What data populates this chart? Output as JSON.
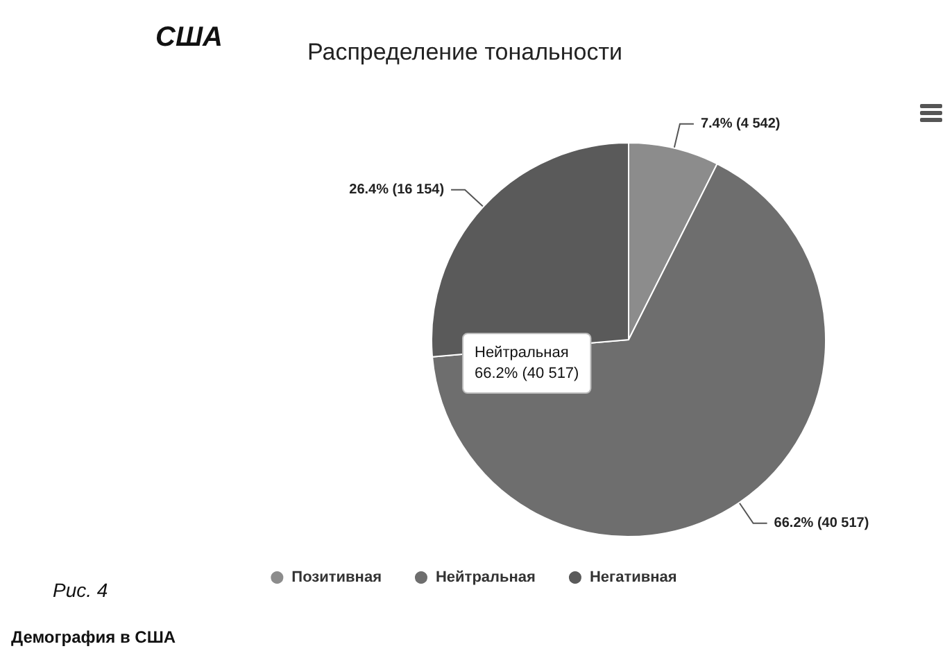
{
  "chart_data": {
    "type": "pie",
    "title": "Распределение тональности",
    "categories": [
      "Позитивная",
      "Нейтральная",
      "Негативная"
    ],
    "values": [
      4542,
      40517,
      16154
    ],
    "colors": [
      "#8c8c8c",
      "#6e6e6e",
      "#5a5a5a"
    ],
    "value_labels": [
      "7.4% (4 542)",
      "66.2% (40 517)",
      "26.4% (16 154)"
    ],
    "legend": "bottom",
    "annotations": [
      "США",
      "Рис. 4",
      "Демография в США",
      "Нейтральная\n66.2% (40 517)"
    ]
  }
}
